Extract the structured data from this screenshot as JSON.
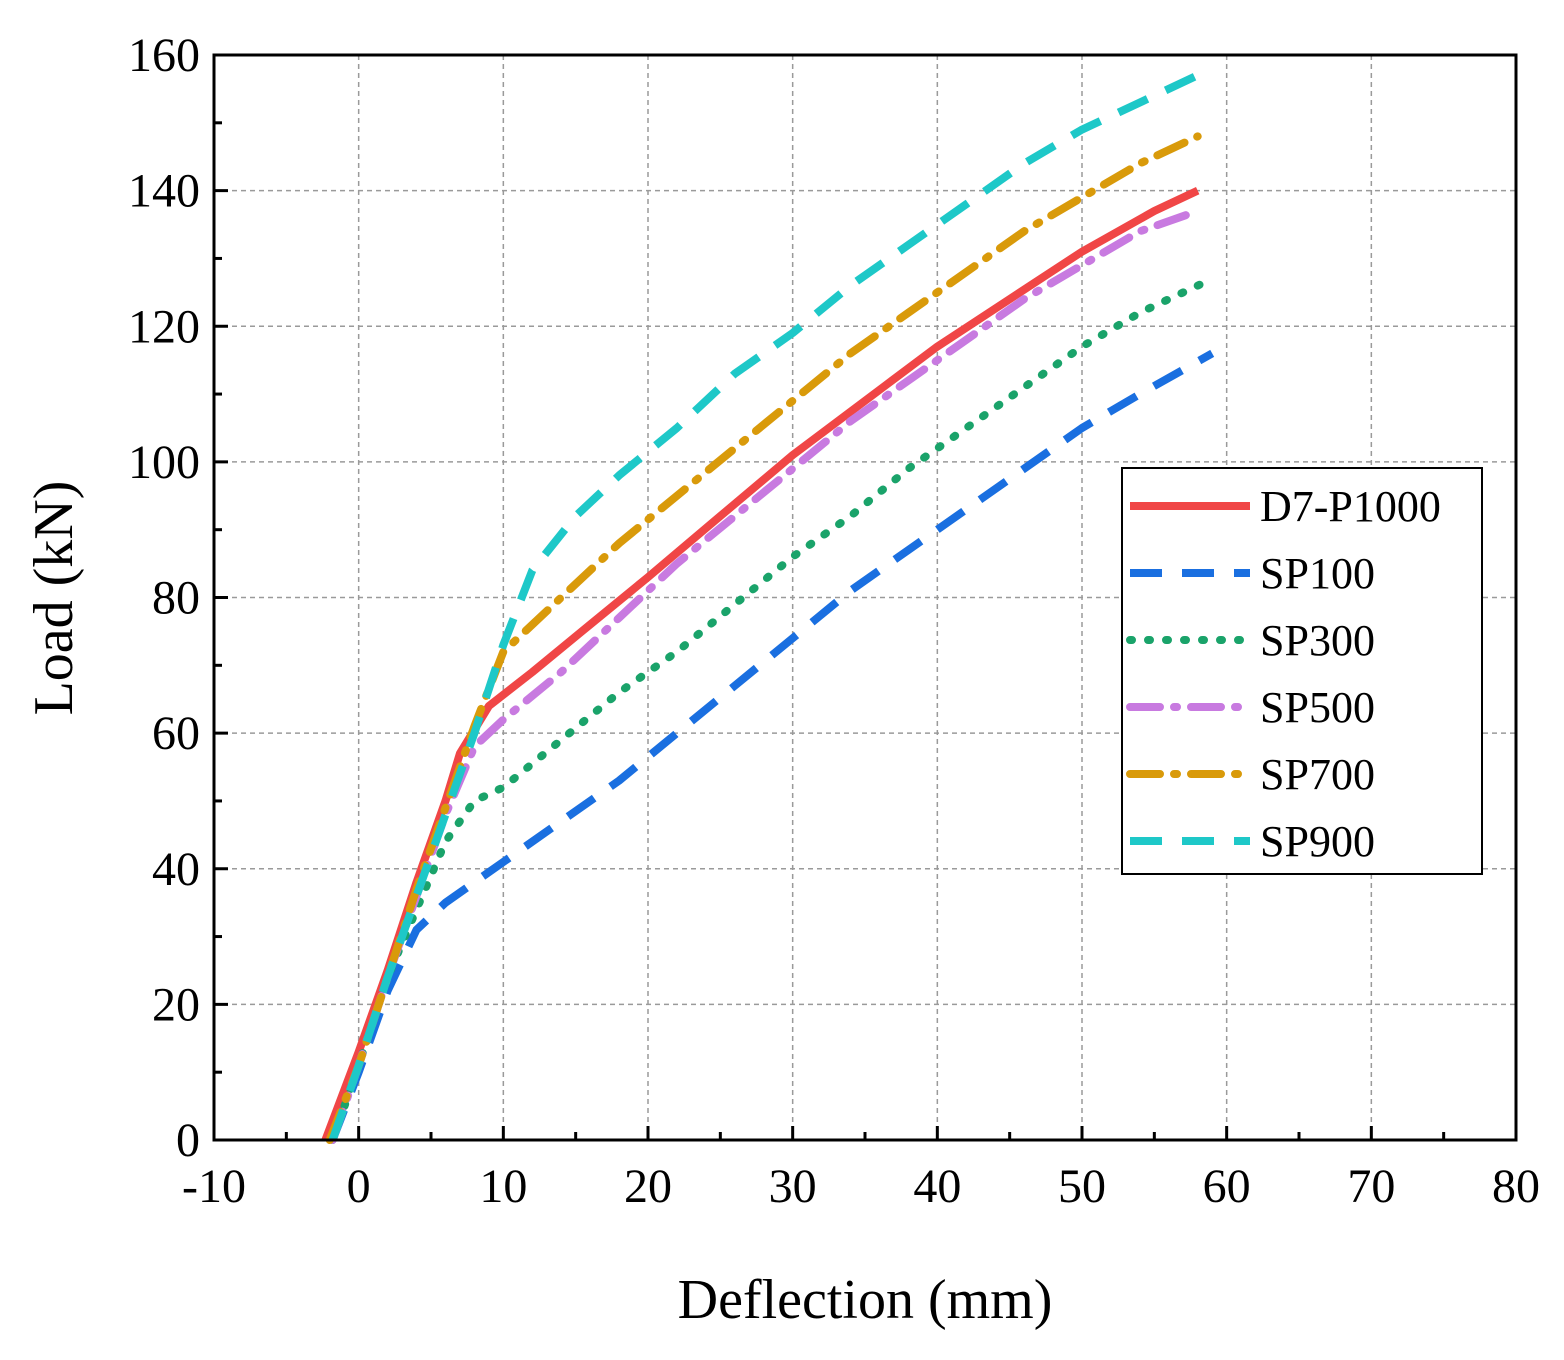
{
  "chart_data": {
    "type": "line",
    "xlabel": "Deflection (mm)",
    "ylabel": "Load (kN)",
    "xlim": [
      -10,
      80
    ],
    "ylim": [
      0,
      160
    ],
    "xticks": [
      "-10",
      "0",
      "10",
      "20",
      "30",
      "40",
      "50",
      "60",
      "70",
      "80"
    ],
    "yticks": [
      "0",
      "20",
      "40",
      "60",
      "80",
      "100",
      "120",
      "140",
      "160"
    ],
    "xtick_values": [
      -10,
      0,
      10,
      20,
      30,
      40,
      50,
      60,
      70,
      80
    ],
    "ytick_values": [
      0,
      20,
      40,
      60,
      80,
      100,
      120,
      140,
      160
    ],
    "grid": true,
    "legend_position": "center-right",
    "series": [
      {
        "name": "D7-P1000",
        "color": "#f04646",
        "style": "solid",
        "x": [
          -2.3,
          0,
          2,
          4,
          6,
          7,
          9,
          12,
          16,
          20,
          25,
          30,
          35,
          40,
          45,
          50,
          55,
          58
        ],
        "y": [
          0,
          13,
          25,
          38,
          50,
          57,
          64,
          69,
          76,
          83,
          92,
          101,
          109,
          117,
          124,
          131,
          137,
          140
        ]
      },
      {
        "name": "SP100",
        "color": "#1a6fe0",
        "style": "dash",
        "x": [
          -1.8,
          0,
          2,
          4,
          6,
          8,
          10,
          14,
          18,
          22,
          26,
          30,
          34,
          38,
          42,
          46,
          50,
          54,
          59
        ],
        "y": [
          0,
          10,
          22,
          31,
          35,
          38,
          41,
          47,
          53,
          60,
          67,
          74,
          81,
          87,
          93,
          99,
          105,
          110,
          116
        ]
      },
      {
        "name": "SP300",
        "color": "#1aa36a",
        "style": "dot",
        "x": [
          -1.8,
          0,
          2,
          4,
          6,
          8,
          10,
          14,
          18,
          22,
          26,
          30,
          34,
          38,
          42,
          46,
          50,
          54,
          59
        ],
        "y": [
          0,
          11,
          24,
          34,
          44,
          50,
          52,
          59,
          66,
          72,
          79,
          86,
          92,
          99,
          105,
          111,
          117,
          122,
          127
        ]
      },
      {
        "name": "SP500",
        "color": "#c87ae0",
        "style": "dashdot",
        "x": [
          -1.8,
          0,
          2,
          4,
          6,
          8,
          10,
          14,
          18,
          22,
          26,
          30,
          34,
          38,
          42,
          46,
          50,
          54,
          58
        ],
        "y": [
          0,
          11,
          24,
          36,
          48,
          58,
          62,
          69,
          77,
          85,
          92,
          99,
          106,
          112,
          118,
          124,
          129,
          134,
          137
        ]
      },
      {
        "name": "SP700",
        "color": "#d99a0a",
        "style": "dashdot",
        "x": [
          -2,
          0,
          2,
          4,
          6,
          8,
          10,
          14,
          18,
          22,
          26,
          30,
          34,
          38,
          42,
          46,
          50,
          54,
          58
        ],
        "y": [
          0,
          11,
          24,
          37,
          49,
          61,
          72,
          80,
          88,
          95,
          102,
          109,
          116,
          122,
          128,
          134,
          139,
          144,
          148
        ]
      },
      {
        "name": "SP900",
        "color": "#1ec8c8",
        "style": "dash",
        "x": [
          -1.8,
          0,
          2,
          4,
          6,
          8,
          10,
          12,
          15,
          18,
          22,
          26,
          30,
          34,
          38,
          42,
          46,
          50,
          54,
          58
        ],
        "y": [
          0,
          11,
          24,
          36,
          48,
          60,
          73,
          84,
          92,
          98,
          105,
          113,
          119,
          126,
          132,
          138,
          144,
          149,
          153,
          157
        ]
      }
    ]
  }
}
